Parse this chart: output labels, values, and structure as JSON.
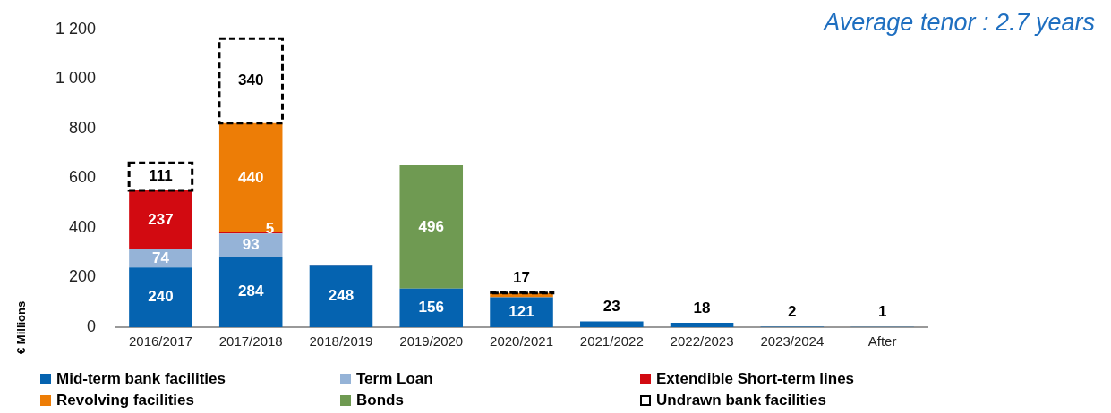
{
  "chart_data": {
    "type": "bar",
    "stacked": true,
    "ylabel": "€ Millions",
    "annotations": [
      "Average tenor : 2.7 years"
    ],
    "categories": [
      "2016/2017",
      "2017/2018",
      "2018/2019",
      "2019/2020",
      "2020/2021",
      "2021/2022",
      "2022/2023",
      "2023/2024",
      "After"
    ],
    "series": [
      {
        "name": "Mid-term bank facilities",
        "color": "#0563b0",
        "values": [
          240,
          284,
          248,
          156,
          121,
          23,
          18,
          2,
          1
        ],
        "value_labels": [
          "240",
          "284",
          "248",
          "156",
          "121",
          "23",
          "18",
          "2",
          "1"
        ]
      },
      {
        "name": "Term Loan",
        "color": "#95b3d7",
        "values": [
          74,
          93,
          null,
          null,
          null,
          null,
          null,
          null,
          null
        ],
        "value_labels": [
          "74",
          "93",
          null,
          null,
          null,
          null,
          null,
          null,
          null
        ]
      },
      {
        "name": "Extendible Short-term lines",
        "color": "#d20a11",
        "values": [
          237,
          5,
          3,
          null,
          null,
          null,
          null,
          null,
          null
        ],
        "value_labels": [
          "237",
          "5",
          null,
          null,
          null,
          null,
          null,
          null,
          null
        ]
      },
      {
        "name": "Revolving facilities",
        "color": "#ed7d06",
        "values": [
          null,
          440,
          null,
          null,
          17,
          null,
          null,
          null,
          null
        ],
        "value_labels": [
          null,
          "440",
          null,
          null,
          "17",
          null,
          null,
          null,
          null
        ]
      },
      {
        "name": "Bonds",
        "color": "#6f9a52",
        "values": [
          null,
          null,
          null,
          496,
          null,
          null,
          null,
          null,
          null
        ],
        "value_labels": [
          null,
          null,
          null,
          "496",
          null,
          null,
          null,
          null,
          null
        ]
      },
      {
        "name": "Undrawn bank facilities",
        "color": "#000000",
        "line_style": "dashed",
        "values": [
          111,
          340,
          null,
          null,
          2,
          null,
          null,
          null,
          null
        ],
        "value_labels": [
          "111",
          "340",
          null,
          null,
          null,
          null,
          null,
          null,
          null
        ]
      }
    ],
    "ylim": [
      0,
      1200
    ],
    "yticks": [
      0,
      200,
      400,
      600,
      800,
      {
        "value": 1000,
        "label": "1 000"
      },
      {
        "value": 1200,
        "label": "1 200"
      }
    ],
    "grid": false,
    "legend": "bottom"
  }
}
